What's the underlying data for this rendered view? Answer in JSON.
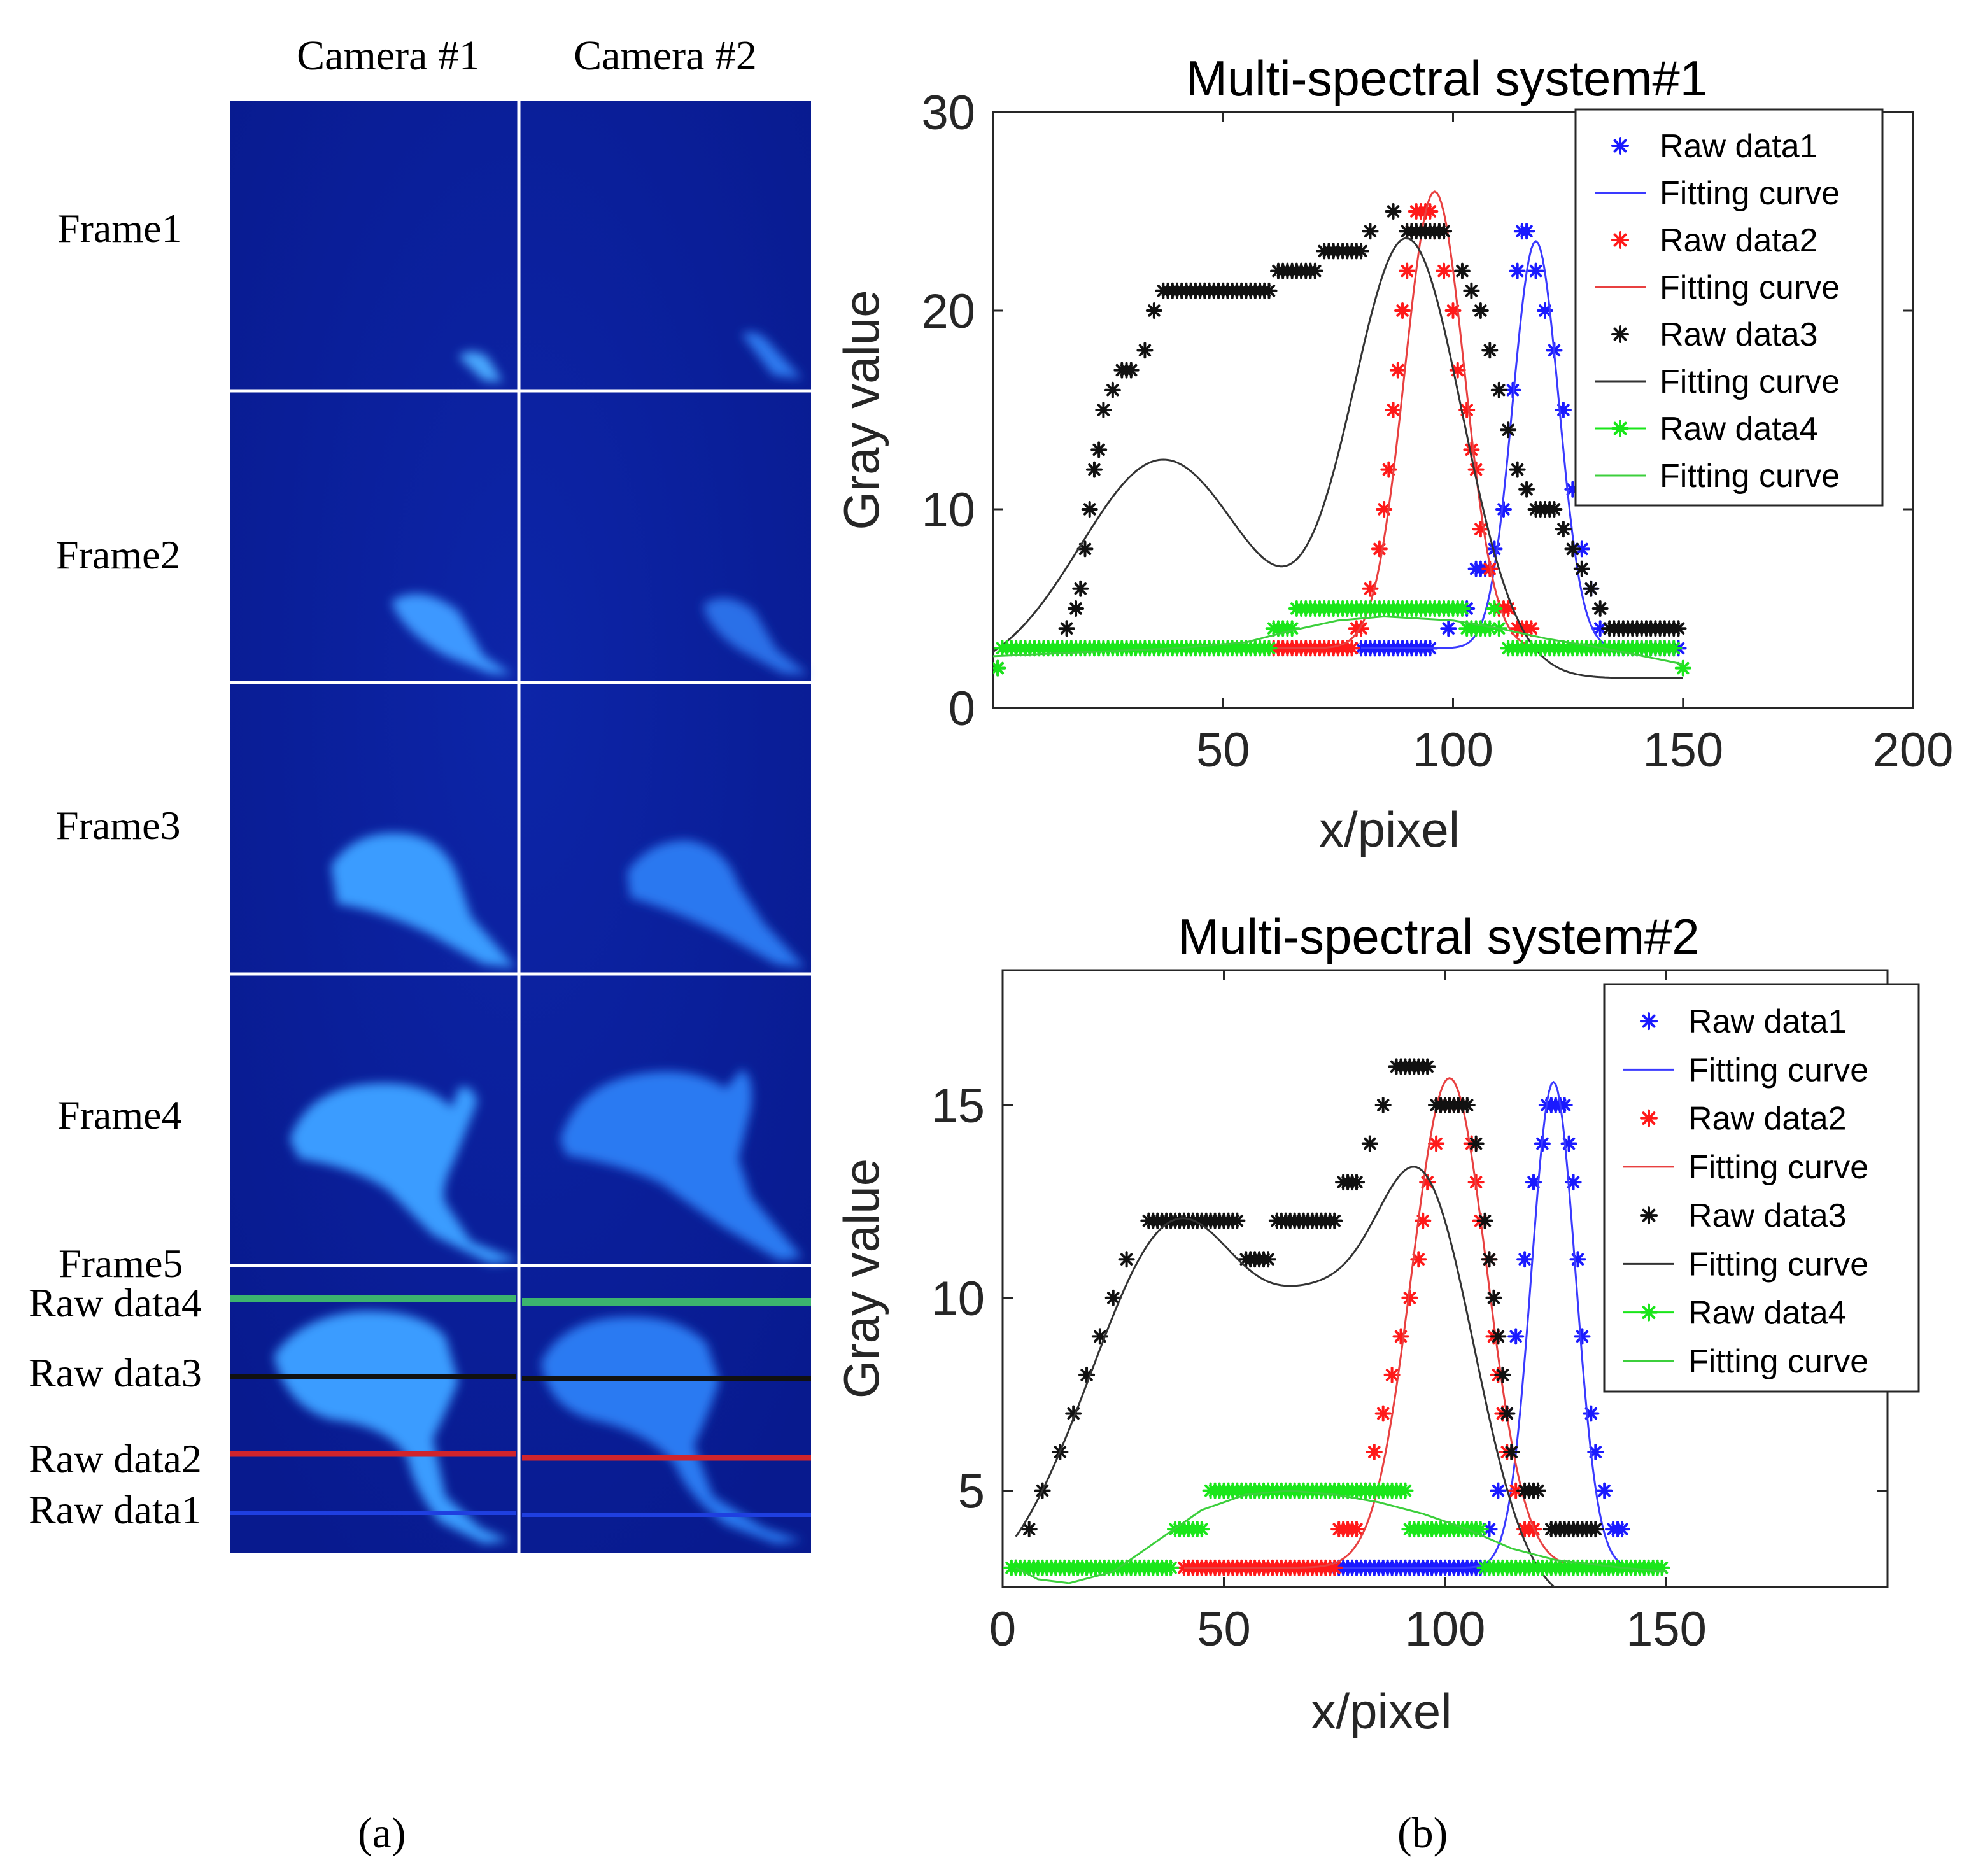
{
  "panel_a": {
    "camera_labels": [
      "Camera #1",
      "Camera #2"
    ],
    "frame_labels": [
      "Frame1",
      "Frame2",
      "Frame3",
      "Frame4",
      "Frame5"
    ],
    "raw_line_labels": [
      "Raw data4",
      "Raw data3",
      "Raw data2",
      "Raw data1"
    ],
    "raw_line_colors": [
      "#3cb46e",
      "#111111",
      "#d0242c",
      "#1f3fe0"
    ],
    "subfigure_label": "(a)"
  },
  "panel_b": {
    "subfigure_label": "(b)"
  },
  "colors": {
    "raw1": "#1a1aff",
    "raw2": "#ff1a1a",
    "raw3": "#111111",
    "raw4": "#1ae61a",
    "fit1": "#3a3aff",
    "fit2": "#e84040",
    "fit3": "#333333",
    "fit4": "#3ccf3c",
    "cam_bg": "#0a1f99"
  },
  "chart_data": [
    {
      "type": "scatter",
      "title": "Multi-spectral system#1",
      "xlabel": "x/pixel",
      "ylabel": "Gray value",
      "xlim": [
        0,
        200
      ],
      "ylim": [
        0,
        30
      ],
      "xticks": [
        50,
        100,
        150,
        200
      ],
      "yticks": [
        0,
        10,
        20,
        30
      ],
      "legend_position": "top-right",
      "legend": [
        "Raw data1",
        "Fitting curve",
        "Raw data2",
        "Fitting curve",
        "Raw data3",
        "Fitting curve",
        "Raw data4",
        "Fitting curve"
      ],
      "series": [
        {
          "name": "Raw data1",
          "kind": "points",
          "points": [
            [
              80,
              3
            ],
            [
              95,
              3
            ],
            [
              99,
              4
            ],
            [
              103,
              5
            ],
            [
              105,
              7
            ],
            [
              107,
              7
            ],
            [
              109,
              8
            ],
            [
              111,
              10
            ],
            [
              113,
              16
            ],
            [
              114,
              22
            ],
            [
              115,
              24
            ],
            [
              116,
              24
            ],
            [
              118,
              22
            ],
            [
              120,
              20
            ],
            [
              122,
              18
            ],
            [
              124,
              15
            ],
            [
              126,
              11
            ],
            [
              128,
              8
            ],
            [
              130,
              6
            ],
            [
              132,
              4
            ],
            [
              134,
              3
            ],
            [
              140,
              3
            ],
            [
              149,
              3
            ]
          ]
        },
        {
          "name": "Fitting curve",
          "kind": "gauss",
          "color_key": "fit1",
          "xrange": [
            80,
            150
          ],
          "base": 3,
          "amp": 20.5,
          "mu": 118,
          "sigma": 5
        },
        {
          "name": "Raw data2",
          "kind": "points",
          "points": [
            [
              61,
              3
            ],
            [
              78,
              3
            ],
            [
              79,
              4
            ],
            [
              80,
              4
            ],
            [
              82,
              6
            ],
            [
              84,
              8
            ],
            [
              85,
              10
            ],
            [
              86,
              12
            ],
            [
              87,
              15
            ],
            [
              88,
              17
            ],
            [
              89,
              20
            ],
            [
              90,
              22
            ],
            [
              91,
              24
            ],
            [
              92,
              25
            ],
            [
              93,
              25
            ],
            [
              95,
              25
            ],
            [
              96,
              24
            ],
            [
              98,
              22
            ],
            [
              100,
              20
            ],
            [
              101,
              17
            ],
            [
              103,
              15
            ],
            [
              104,
              13
            ],
            [
              105,
              12
            ],
            [
              106,
              9
            ],
            [
              108,
              7
            ],
            [
              110,
              5
            ],
            [
              112,
              5
            ],
            [
              114,
              4
            ],
            [
              117,
              4
            ]
          ]
        },
        {
          "name": "Fitting curve",
          "kind": "gauss",
          "color_key": "fit2",
          "xrange": [
            61,
            130
          ],
          "base": 3,
          "amp": 23,
          "mu": 96,
          "sigma": 6.5
        },
        {
          "name": "Raw data3",
          "kind": "points",
          "points": [
            [
              1,
              2
            ],
            [
              16,
              4
            ],
            [
              18,
              5
            ],
            [
              19,
              6
            ],
            [
              20,
              8
            ],
            [
              21,
              10
            ],
            [
              22,
              12
            ],
            [
              23,
              13
            ],
            [
              24,
              15
            ],
            [
              26,
              16
            ],
            [
              28,
              17
            ],
            [
              30,
              17
            ],
            [
              33,
              18
            ],
            [
              35,
              20
            ],
            [
              37,
              21
            ],
            [
              60,
              21
            ],
            [
              62,
              22
            ],
            [
              70,
              22
            ],
            [
              72,
              23
            ],
            [
              80,
              23
            ],
            [
              82,
              24
            ],
            [
              87,
              25
            ],
            [
              90,
              24
            ],
            [
              98,
              24
            ],
            [
              102,
              22
            ],
            [
              104,
              21
            ],
            [
              106,
              20
            ],
            [
              108,
              18
            ],
            [
              110,
              16
            ],
            [
              112,
              14
            ],
            [
              114,
              12
            ],
            [
              116,
              11
            ],
            [
              118,
              10
            ],
            [
              122,
              10
            ],
            [
              124,
              9
            ],
            [
              126,
              8
            ],
            [
              128,
              7
            ],
            [
              130,
              6
            ],
            [
              132,
              5
            ],
            [
              134,
              4
            ],
            [
              149,
              4
            ]
          ]
        },
        {
          "name": "Fitting curve",
          "kind": "bumps",
          "color_key": "fit3",
          "xrange": [
            0,
            150
          ],
          "base": 1.5,
          "components": [
            [
              11,
              37,
              18
            ],
            [
              22,
              90,
              12
            ]
          ]
        },
        {
          "name": "Raw data4",
          "kind": "points",
          "points": [
            [
              1,
              2
            ],
            [
              2,
              3
            ],
            [
              60,
              3
            ],
            [
              61,
              4
            ],
            [
              65,
              4
            ],
            [
              66,
              5
            ],
            [
              70,
              5
            ],
            [
              102,
              5
            ],
            [
              103,
              4
            ],
            [
              108,
              4
            ],
            [
              109,
              5
            ],
            [
              110,
              4
            ],
            [
              112,
              3
            ],
            [
              148,
              3
            ],
            [
              150,
              2
            ]
          ]
        },
        {
          "name": "Fitting curve",
          "kind": "poly",
          "color_key": "fit4",
          "points": [
            [
              0,
              2.6
            ],
            [
              20,
              2.8
            ],
            [
              40,
              3.0
            ],
            [
              55,
              3.3
            ],
            [
              65,
              3.9
            ],
            [
              75,
              4.4
            ],
            [
              85,
              4.6
            ],
            [
              100,
              4.4
            ],
            [
              110,
              4.0
            ],
            [
              120,
              3.5
            ],
            [
              135,
              2.9
            ],
            [
              150,
              2.2
            ]
          ]
        }
      ]
    },
    {
      "type": "scatter",
      "title": "Multi-spectral system#2",
      "xlabel": "x/pixel",
      "ylabel": "Gray value",
      "xlim": [
        0,
        200
      ],
      "ylim": [
        2.5,
        18.5
      ],
      "xticks": [
        0,
        50,
        100,
        150
      ],
      "yticks": [
        5,
        10,
        15
      ],
      "legend_position": "top-right",
      "legend": [
        "Raw data1",
        "Fitting curve",
        "Raw data2",
        "Fitting curve",
        "Raw data3",
        "Fitting curve",
        "Raw data4",
        "Fitting curve"
      ],
      "series": [
        {
          "name": "Raw data1",
          "kind": "points",
          "points": [
            [
              76,
              3
            ],
            [
              109,
              3
            ],
            [
              110,
              4
            ],
            [
              112,
              5
            ],
            [
              114,
              7
            ],
            [
              116,
              9
            ],
            [
              118,
              11
            ],
            [
              120,
              13
            ],
            [
              122,
              14
            ],
            [
              123,
              15
            ],
            [
              127,
              15
            ],
            [
              128,
              14
            ],
            [
              129,
              13
            ],
            [
              130,
              11
            ],
            [
              131,
              9
            ],
            [
              133,
              7
            ],
            [
              134,
              6
            ],
            [
              136,
              5
            ],
            [
              138,
              4
            ],
            [
              140,
              4
            ]
          ]
        },
        {
          "name": "Fitting curve",
          "kind": "gauss",
          "color_key": "fit1",
          "xrange": [
            76,
            150
          ],
          "base": 3,
          "amp": 12.6,
          "mu": 124.5,
          "sigma": 5
        },
        {
          "name": "Raw data2",
          "kind": "points",
          "points": [
            [
              41,
              3
            ],
            [
              75,
              3
            ],
            [
              76,
              4
            ],
            [
              80,
              4
            ],
            [
              82,
              5
            ],
            [
              84,
              6
            ],
            [
              86,
              7
            ],
            [
              88,
              8
            ],
            [
              90,
              9
            ],
            [
              92,
              10
            ],
            [
              94,
              11
            ],
            [
              95,
              12
            ],
            [
              96,
              13
            ],
            [
              98,
              14
            ],
            [
              99,
              15
            ],
            [
              104,
              15
            ],
            [
              106,
              14
            ],
            [
              107,
              13
            ],
            [
              108,
              12
            ],
            [
              110,
              11
            ],
            [
              111,
              9
            ],
            [
              112,
              8
            ],
            [
              113,
              7
            ],
            [
              114,
              6
            ],
            [
              116,
              5
            ],
            [
              118,
              4
            ],
            [
              120,
              4
            ]
          ]
        },
        {
          "name": "Fitting curve",
          "kind": "gauss",
          "color_key": "fit2",
          "xrange": [
            41,
            135
          ],
          "base": 3,
          "amp": 12.7,
          "mu": 101,
          "sigma": 8.5
        },
        {
          "name": "Raw data3",
          "kind": "points",
          "points": [
            [
              3,
              3
            ],
            [
              6,
              4
            ],
            [
              9,
              5
            ],
            [
              13,
              6
            ],
            [
              16,
              7
            ],
            [
              19,
              8
            ],
            [
              22,
              9
            ],
            [
              25,
              10
            ],
            [
              28,
              11
            ],
            [
              33,
              12
            ],
            [
              53,
              12
            ],
            [
              55,
              11
            ],
            [
              60,
              11
            ],
            [
              62,
              12
            ],
            [
              75,
              12
            ],
            [
              77,
              13
            ],
            [
              80,
              13
            ],
            [
              83,
              14
            ],
            [
              86,
              15
            ],
            [
              89,
              16
            ],
            [
              96,
              16
            ],
            [
              98,
              15
            ],
            [
              105,
              15
            ],
            [
              107,
              14
            ],
            [
              109,
              12
            ],
            [
              110,
              11
            ],
            [
              111,
              10
            ],
            [
              112,
              9
            ],
            [
              113,
              8
            ],
            [
              114,
              7
            ],
            [
              115,
              6
            ],
            [
              118,
              5
            ],
            [
              121,
              5
            ],
            [
              124,
              4
            ],
            [
              130,
              4
            ],
            [
              134,
              4
            ]
          ]
        },
        {
          "name": "Fitting curve",
          "kind": "bumps",
          "color_key": "fit3",
          "xrange": [
            3,
            137
          ],
          "base": 2.0,
          "components": [
            [
              10,
              40,
              20
            ],
            [
              4,
              72,
              11
            ],
            [
              10.6,
              95,
              12
            ]
          ]
        },
        {
          "name": "Raw data4",
          "kind": "points",
          "points": [
            [
              2,
              3
            ],
            [
              38,
              3
            ],
            [
              39,
              4
            ],
            [
              45,
              4
            ],
            [
              47,
              5
            ],
            [
              91,
              5
            ],
            [
              92,
              4
            ],
            [
              108,
              4
            ],
            [
              109,
              3
            ],
            [
              149,
              3
            ]
          ]
        },
        {
          "name": "Fitting curve",
          "kind": "poly",
          "color_key": "fit4",
          "points": [
            [
              3,
              3.0
            ],
            [
              8,
              2.7
            ],
            [
              15,
              2.6
            ],
            [
              25,
              2.9
            ],
            [
              35,
              3.7
            ],
            [
              45,
              4.5
            ],
            [
              55,
              4.9
            ],
            [
              65,
              5.0
            ],
            [
              75,
              4.9
            ],
            [
              85,
              4.7
            ],
            [
              95,
              4.4
            ],
            [
              105,
              4.0
            ],
            [
              115,
              3.5
            ],
            [
              125,
              3.2
            ],
            [
              140,
              3.0
            ],
            [
              150,
              2.9
            ]
          ]
        }
      ]
    }
  ]
}
